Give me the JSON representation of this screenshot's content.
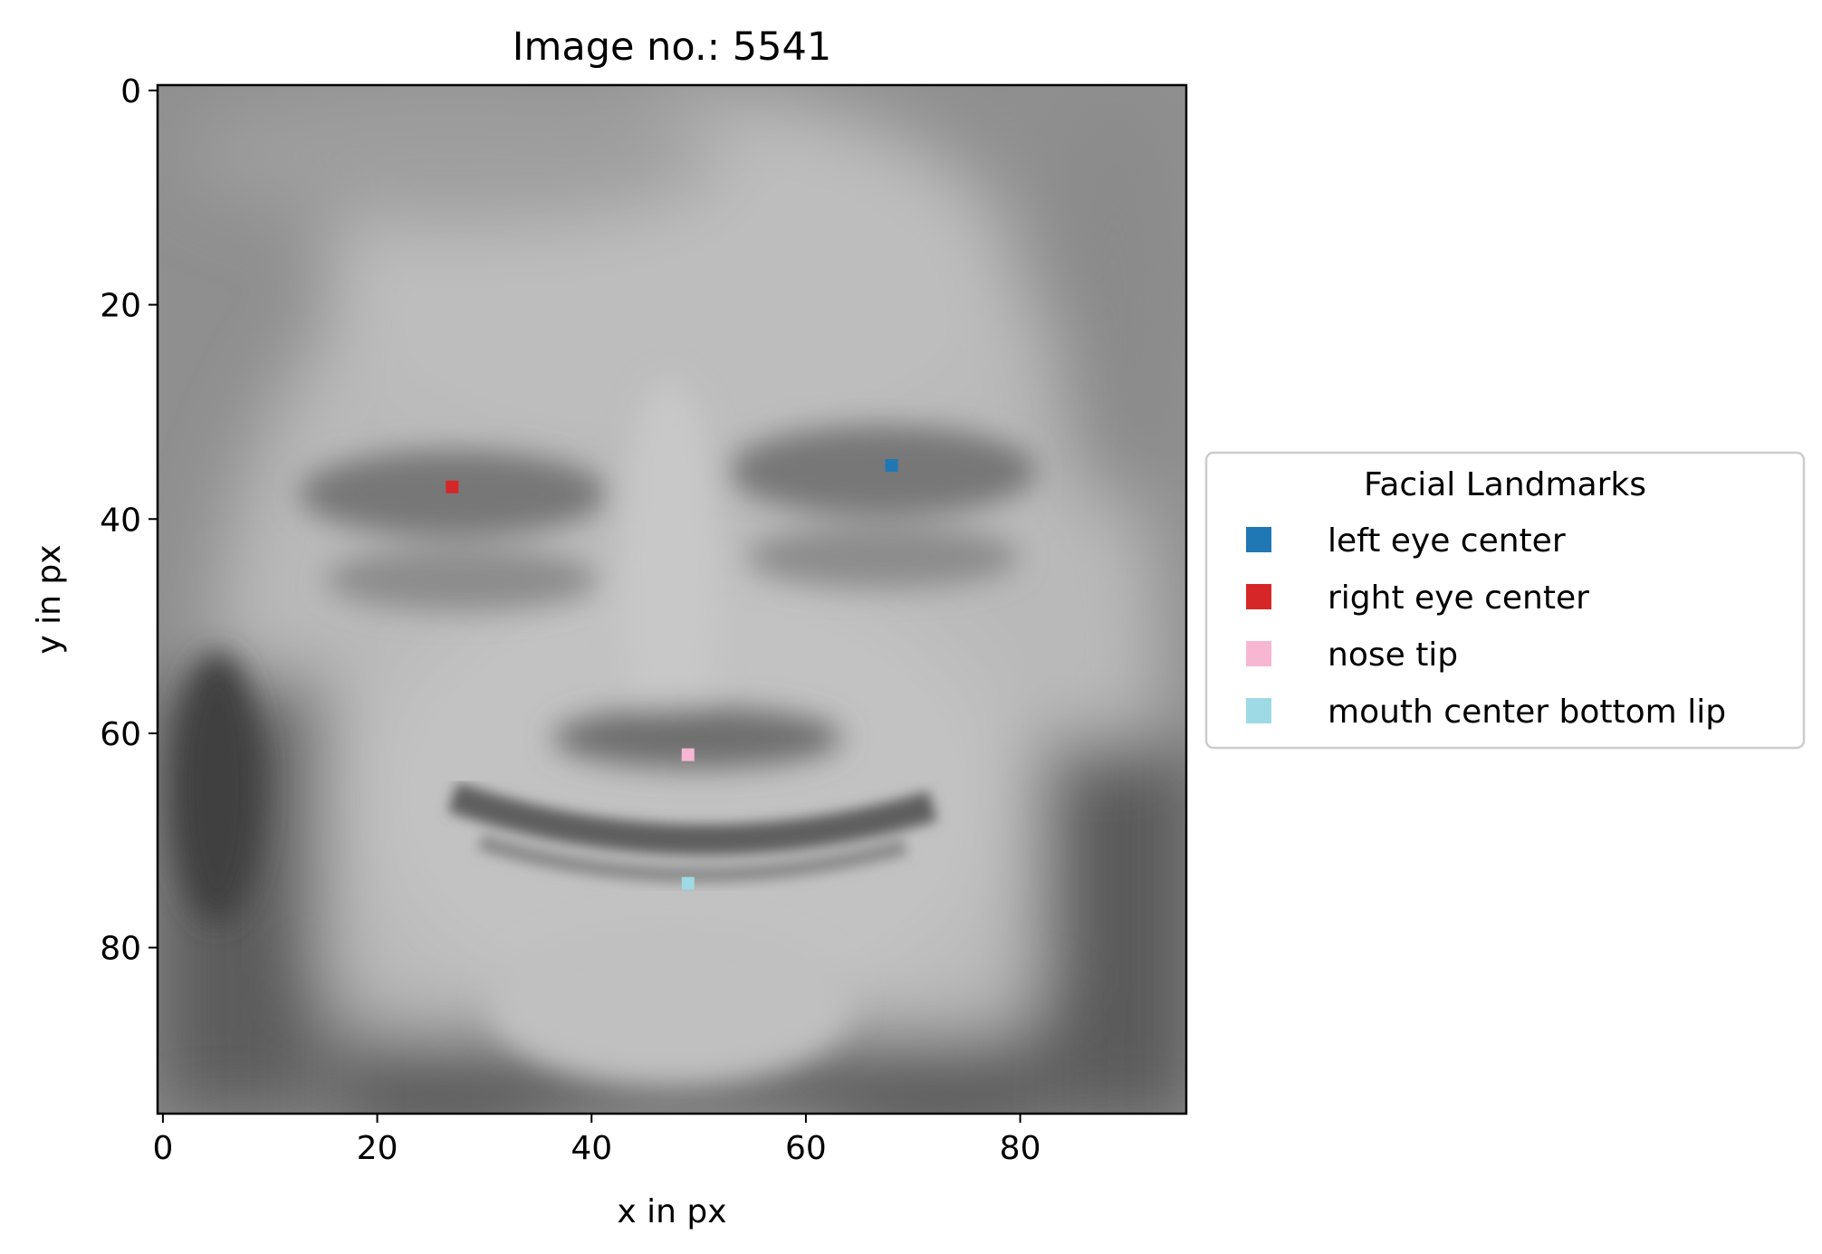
{
  "chart_data": {
    "type": "scatter",
    "title": "Image no.: 5541",
    "xlabel": "x in px",
    "ylabel": "y in px",
    "xlim": [
      -0.5,
      95.5
    ],
    "ylim": [
      95.5,
      -0.5
    ],
    "y_inverted": true,
    "xticks": [
      0,
      20,
      40,
      60,
      80
    ],
    "yticks": [
      0,
      20,
      40,
      60,
      80
    ],
    "grid": false,
    "background": "grayscale photograph of a smiling child's face (96x96 px image)",
    "legend": {
      "title": "Facial Landmarks",
      "placement": "center-left outside right of plot"
    },
    "series": [
      {
        "name": "left eye center",
        "color": "#1f77b4",
        "points": [
          [
            68,
            35
          ]
        ]
      },
      {
        "name": "right eye center",
        "color": "#d62728",
        "points": [
          [
            27,
            37
          ]
        ]
      },
      {
        "name": "nose tip",
        "color": "#f7b6d2",
        "points": [
          [
            49,
            62
          ]
        ]
      },
      {
        "name": "mouth center bottom lip",
        "color": "#9edae5",
        "points": [
          [
            49,
            74
          ]
        ]
      }
    ]
  }
}
